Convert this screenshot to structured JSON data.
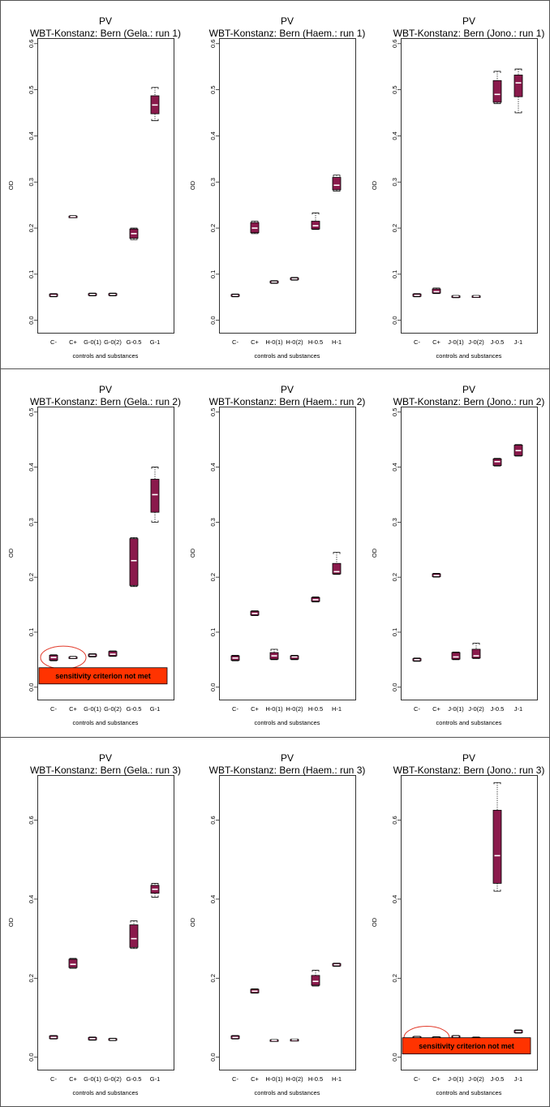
{
  "figure_title": "PV",
  "colors": {
    "box_fill": "#8a1a4c",
    "box_outline": "#000000",
    "median": "#ffffff",
    "warning_fill": "#ff3300",
    "warning_outline": "#000000",
    "highlight_circle": "#e23a2a",
    "panel_border": "#555555"
  },
  "chart_data": [
    {
      "type": "box",
      "title": "PV",
      "subtitle": "WBT-Konstanz: Bern (Gela.: run 1)",
      "xlabel": "controls and substances",
      "ylabel": "OD",
      "ylim": [
        0,
        0.6
      ],
      "ticks": [
        {
          "v": 0,
          "label": "0.0"
        },
        {
          "v": 0.1,
          "label": "0.1"
        },
        {
          "v": 0.2,
          "label": "0.2"
        },
        {
          "v": 0.3,
          "label": "0.3"
        },
        {
          "v": 0.4,
          "label": "0.4"
        },
        {
          "v": 0.5,
          "label": "0.5"
        },
        {
          "v": 0.6,
          "label": "0.6"
        }
      ],
      "categories": [
        "C-",
        "C+",
        "G-0(1)",
        "G-0(2)",
        "G-0.5",
        "G-1"
      ],
      "boxes": [
        {
          "min": 0.051,
          "q1": 0.052,
          "median": 0.054,
          "q3": 0.057,
          "max": 0.058
        },
        {
          "min": 0.223,
          "q1": 0.224,
          "median": 0.225,
          "q3": 0.226,
          "max": 0.227
        },
        {
          "min": 0.053,
          "q1": 0.054,
          "median": 0.056,
          "q3": 0.058,
          "max": 0.059
        },
        {
          "min": 0.053,
          "q1": 0.054,
          "median": 0.056,
          "q3": 0.058,
          "max": 0.059
        },
        {
          "min": 0.175,
          "q1": 0.178,
          "median": 0.188,
          "q3": 0.198,
          "max": 0.2
        },
        {
          "min": 0.433,
          "q1": 0.448,
          "median": 0.467,
          "q3": 0.487,
          "max": 0.505
        }
      ],
      "warning": null
    },
    {
      "type": "box",
      "title": "PV",
      "subtitle": "WBT-Konstanz: Bern (Haem.: run 1)",
      "xlabel": "controls and substances",
      "ylabel": "OD",
      "ylim": [
        0,
        0.6
      ],
      "ticks": [
        {
          "v": 0,
          "label": "0.0"
        },
        {
          "v": 0.1,
          "label": "0.1"
        },
        {
          "v": 0.2,
          "label": "0.2"
        },
        {
          "v": 0.3,
          "label": "0.3"
        },
        {
          "v": 0.4,
          "label": "0.4"
        },
        {
          "v": 0.5,
          "label": "0.5"
        },
        {
          "v": 0.6,
          "label": "0.6"
        }
      ],
      "categories": [
        "C-",
        "C+",
        "H-0(1)",
        "H-0(2)",
        "H-0.5",
        "H-1"
      ],
      "boxes": [
        {
          "min": 0.051,
          "q1": 0.052,
          "median": 0.054,
          "q3": 0.056,
          "max": 0.057
        },
        {
          "min": 0.188,
          "q1": 0.19,
          "median": 0.2,
          "q3": 0.212,
          "max": 0.215
        },
        {
          "min": 0.08,
          "q1": 0.081,
          "median": 0.083,
          "q3": 0.085,
          "max": 0.086
        },
        {
          "min": 0.087,
          "q1": 0.088,
          "median": 0.09,
          "q3": 0.092,
          "max": 0.093
        },
        {
          "min": 0.197,
          "q1": 0.198,
          "median": 0.205,
          "q3": 0.215,
          "max": 0.233
        },
        {
          "min": 0.28,
          "q1": 0.283,
          "median": 0.293,
          "q3": 0.31,
          "max": 0.315
        }
      ],
      "warning": null
    },
    {
      "type": "box",
      "title": "PV",
      "subtitle": "WBT-Konstanz: Bern (Jono.: run 1)",
      "xlabel": "controls and substances",
      "ylabel": "OD",
      "ylim": [
        0,
        0.6
      ],
      "ticks": [
        {
          "v": 0,
          "label": "0.0"
        },
        {
          "v": 0.1,
          "label": "0.1"
        },
        {
          "v": 0.2,
          "label": "0.2"
        },
        {
          "v": 0.3,
          "label": "0.3"
        },
        {
          "v": 0.4,
          "label": "0.4"
        },
        {
          "v": 0.5,
          "label": "0.5"
        },
        {
          "v": 0.6,
          "label": "0.6"
        }
      ],
      "categories": [
        "C-",
        "C+",
        "J-0(1)",
        "J-0(2)",
        "J-0.5",
        "J-1"
      ],
      "boxes": [
        {
          "min": 0.051,
          "q1": 0.052,
          "median": 0.054,
          "q3": 0.057,
          "max": 0.058
        },
        {
          "min": 0.058,
          "q1": 0.059,
          "median": 0.062,
          "q3": 0.068,
          "max": 0.07
        },
        {
          "min": 0.049,
          "q1": 0.05,
          "median": 0.052,
          "q3": 0.053,
          "max": 0.054
        },
        {
          "min": 0.05,
          "q1": 0.051,
          "median": 0.052,
          "q3": 0.053,
          "max": 0.054
        },
        {
          "min": 0.47,
          "q1": 0.473,
          "median": 0.49,
          "q3": 0.52,
          "max": 0.54
        },
        {
          "min": 0.45,
          "q1": 0.485,
          "median": 0.515,
          "q3": 0.532,
          "max": 0.545
        }
      ],
      "warning": null
    },
    {
      "type": "box",
      "title": "PV",
      "subtitle": "WBT-Konstanz: Bern (Gela.: run 2)",
      "xlabel": "controls and substances",
      "ylabel": "OD",
      "ylim": [
        0,
        0.5
      ],
      "ticks": [
        {
          "v": 0,
          "label": "0.0"
        },
        {
          "v": 0.1,
          "label": "0.1"
        },
        {
          "v": 0.2,
          "label": "0.2"
        },
        {
          "v": 0.3,
          "label": "0.3"
        },
        {
          "v": 0.4,
          "label": "0.4"
        },
        {
          "v": 0.5,
          "label": "0.5"
        }
      ],
      "categories": [
        "C-",
        "C+",
        "G-0(1)",
        "G-0(2)",
        "G-0.5",
        "G-1"
      ],
      "boxes": [
        {
          "min": 0.048,
          "q1": 0.049,
          "median": 0.054,
          "q3": 0.058,
          "max": 0.059
        },
        {
          "min": 0.052,
          "q1": 0.053,
          "median": 0.054,
          "q3": 0.055,
          "max": 0.056
        },
        {
          "min": 0.055,
          "q1": 0.056,
          "median": 0.058,
          "q3": 0.06,
          "max": 0.061
        },
        {
          "min": 0.056,
          "q1": 0.057,
          "median": 0.06,
          "q3": 0.065,
          "max": 0.066
        },
        {
          "min": 0.183,
          "q1": 0.185,
          "median": 0.23,
          "q3": 0.27,
          "max": 0.272
        },
        {
          "min": 0.3,
          "q1": 0.318,
          "median": 0.35,
          "q3": 0.378,
          "max": 0.4
        }
      ],
      "warning": {
        "text": "sensitivity criterion not met",
        "circle_from": 0,
        "circle_to": 1
      }
    },
    {
      "type": "box",
      "title": "PV",
      "subtitle": "WBT-Konstanz: Bern (Haem.: run 2)",
      "xlabel": "controls and substances",
      "ylabel": "OD",
      "ylim": [
        0,
        0.5
      ],
      "ticks": [
        {
          "v": 0,
          "label": "0.0"
        },
        {
          "v": 0.1,
          "label": "0.1"
        },
        {
          "v": 0.2,
          "label": "0.2"
        },
        {
          "v": 0.3,
          "label": "0.3"
        },
        {
          "v": 0.4,
          "label": "0.4"
        },
        {
          "v": 0.5,
          "label": "0.5"
        }
      ],
      "categories": [
        "C-",
        "C+",
        "H-0(1)",
        "H-0(2)",
        "H-0.5",
        "H-1"
      ],
      "boxes": [
        {
          "min": 0.048,
          "q1": 0.049,
          "median": 0.053,
          "q3": 0.057,
          "max": 0.058
        },
        {
          "min": 0.13,
          "q1": 0.131,
          "median": 0.134,
          "q3": 0.138,
          "max": 0.139
        },
        {
          "min": 0.05,
          "q1": 0.051,
          "median": 0.057,
          "q3": 0.063,
          "max": 0.069
        },
        {
          "min": 0.05,
          "q1": 0.051,
          "median": 0.055,
          "q3": 0.057,
          "max": 0.058
        },
        {
          "min": 0.155,
          "q1": 0.156,
          "median": 0.159,
          "q3": 0.163,
          "max": 0.164
        },
        {
          "min": 0.205,
          "q1": 0.206,
          "median": 0.21,
          "q3": 0.225,
          "max": 0.245
        }
      ],
      "warning": null
    },
    {
      "type": "box",
      "title": "PV",
      "subtitle": "WBT-Konstanz: Bern (Jono.: run 2)",
      "xlabel": "controls and substances",
      "ylabel": "OD",
      "ylim": [
        0,
        0.5
      ],
      "ticks": [
        {
          "v": 0,
          "label": "0.0"
        },
        {
          "v": 0.1,
          "label": "0.1"
        },
        {
          "v": 0.2,
          "label": "0.2"
        },
        {
          "v": 0.3,
          "label": "0.3"
        },
        {
          "v": 0.4,
          "label": "0.4"
        },
        {
          "v": 0.5,
          "label": "0.5"
        }
      ],
      "categories": [
        "C-",
        "C+",
        "J-0(1)",
        "J-0(2)",
        "J-0.5",
        "J-1"
      ],
      "boxes": [
        {
          "min": 0.047,
          "q1": 0.048,
          "median": 0.05,
          "q3": 0.052,
          "max": 0.053
        },
        {
          "min": 0.2,
          "q1": 0.201,
          "median": 0.203,
          "q3": 0.206,
          "max": 0.207
        },
        {
          "min": 0.05,
          "q1": 0.051,
          "median": 0.055,
          "q3": 0.063,
          "max": 0.064
        },
        {
          "min": 0.052,
          "q1": 0.053,
          "median": 0.057,
          "q3": 0.069,
          "max": 0.08
        },
        {
          "min": 0.402,
          "q1": 0.403,
          "median": 0.41,
          "q3": 0.415,
          "max": 0.416
        },
        {
          "min": 0.42,
          "q1": 0.421,
          "median": 0.43,
          "q3": 0.44,
          "max": 0.441
        }
      ],
      "warning": null
    },
    {
      "type": "box",
      "title": "PV",
      "subtitle": "WBT-Konstanz: Bern (Gela.: run 3)",
      "xlabel": "controls and substances",
      "ylabel": "OD",
      "ylim": [
        0,
        0.7
      ],
      "ticks": [
        {
          "v": 0,
          "label": "0.0"
        },
        {
          "v": 0.2,
          "label": "0.2"
        },
        {
          "v": 0.4,
          "label": "0.4"
        },
        {
          "v": 0.6,
          "label": "0.6"
        }
      ],
      "categories": [
        "C-",
        "C+",
        "G-0(1)",
        "G-0(2)",
        "G-0.5",
        "G-1"
      ],
      "boxes": [
        {
          "min": 0.046,
          "q1": 0.047,
          "median": 0.05,
          "q3": 0.054,
          "max": 0.055
        },
        {
          "min": 0.225,
          "q1": 0.227,
          "median": 0.235,
          "q3": 0.248,
          "max": 0.25
        },
        {
          "min": 0.043,
          "q1": 0.044,
          "median": 0.047,
          "q3": 0.05,
          "max": 0.051
        },
        {
          "min": 0.042,
          "q1": 0.043,
          "median": 0.045,
          "q3": 0.047,
          "max": 0.048
        },
        {
          "min": 0.275,
          "q1": 0.278,
          "median": 0.3,
          "q3": 0.335,
          "max": 0.345
        },
        {
          "min": 0.405,
          "q1": 0.415,
          "median": 0.425,
          "q3": 0.435,
          "max": 0.44
        }
      ],
      "warning": null
    },
    {
      "type": "box",
      "title": "PV",
      "subtitle": "WBT-Konstanz: Bern (Haem.: run 3)",
      "xlabel": "controls and substances",
      "ylabel": "OD",
      "ylim": [
        0,
        0.7
      ],
      "ticks": [
        {
          "v": 0,
          "label": "0.0"
        },
        {
          "v": 0.2,
          "label": "0.2"
        },
        {
          "v": 0.4,
          "label": "0.4"
        },
        {
          "v": 0.6,
          "label": "0.6"
        }
      ],
      "categories": [
        "C-",
        "C+",
        "H-0(1)",
        "H-0(2)",
        "H-0.5",
        "H-1"
      ],
      "boxes": [
        {
          "min": 0.046,
          "q1": 0.047,
          "median": 0.05,
          "q3": 0.054,
          "max": 0.055
        },
        {
          "min": 0.162,
          "q1": 0.163,
          "median": 0.167,
          "q3": 0.172,
          "max": 0.173
        },
        {
          "min": 0.041,
          "q1": 0.042,
          "median": 0.043,
          "q3": 0.044,
          "max": 0.045
        },
        {
          "min": 0.042,
          "q1": 0.043,
          "median": 0.044,
          "q3": 0.045,
          "max": 0.046
        },
        {
          "min": 0.18,
          "q1": 0.182,
          "median": 0.192,
          "q3": 0.207,
          "max": 0.22
        },
        {
          "min": 0.23,
          "q1": 0.231,
          "median": 0.234,
          "q3": 0.237,
          "max": 0.238
        }
      ],
      "warning": null
    },
    {
      "type": "box",
      "title": "PV",
      "subtitle": "WBT-Konstanz: Bern (Jono.: run 3)",
      "xlabel": "controls and substances",
      "ylabel": "OD",
      "ylim": [
        0,
        0.7
      ],
      "ticks": [
        {
          "v": 0,
          "label": "0.0"
        },
        {
          "v": 0.2,
          "label": "0.2"
        },
        {
          "v": 0.4,
          "label": "0.4"
        },
        {
          "v": 0.6,
          "label": "0.6"
        }
      ],
      "categories": [
        "C-",
        "C+",
        "J-0(1)",
        "J-0(2)",
        "J-0.5",
        "J-1"
      ],
      "boxes": [
        {
          "min": 0.046,
          "q1": 0.047,
          "median": 0.05,
          "q3": 0.052,
          "max": 0.053
        },
        {
          "min": 0.045,
          "q1": 0.046,
          "median": 0.049,
          "q3": 0.051,
          "max": 0.052
        },
        {
          "min": 0.049,
          "q1": 0.05,
          "median": 0.052,
          "q3": 0.054,
          "max": 0.055
        },
        {
          "min": 0.043,
          "q1": 0.044,
          "median": 0.047,
          "q3": 0.05,
          "max": 0.051
        },
        {
          "min": 0.42,
          "q1": 0.44,
          "median": 0.51,
          "q3": 0.625,
          "max": 0.695
        },
        {
          "min": 0.061,
          "q1": 0.062,
          "median": 0.065,
          "q3": 0.068,
          "max": 0.069
        }
      ],
      "warning": {
        "text": "sensitivity criterion not met",
        "circle_from": 0,
        "circle_to": 1
      }
    }
  ]
}
